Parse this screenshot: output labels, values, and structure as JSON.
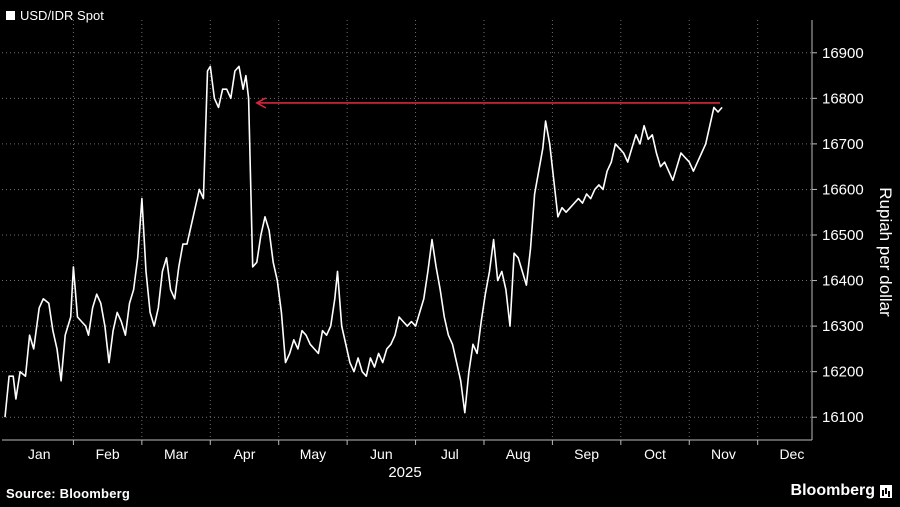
{
  "legend": {
    "label": "USD/IDR Spot"
  },
  "source": "Source: Bloomberg",
  "brand": "Bloomberg",
  "colors": {
    "background": "#000000",
    "line": "#ffffff",
    "arrow": "#d7263d",
    "grid": "#6e6e6e"
  },
  "chart_data": {
    "type": "line",
    "title": "",
    "xlabel": "2025",
    "ylabel": "Rupiah per dollar",
    "ylim": [
      16050,
      16950
    ],
    "yticks": [
      16100,
      16200,
      16300,
      16400,
      16500,
      16600,
      16700,
      16800,
      16900
    ],
    "months": [
      "Jan",
      "Feb",
      "Mar",
      "Apr",
      "May",
      "Jun",
      "Jul",
      "Aug",
      "Sep",
      "Oct",
      "Nov",
      "Dec"
    ],
    "x_range_months": [
      0,
      11.75
    ],
    "grid": true,
    "series": [
      {
        "name": "USD/IDR Spot",
        "values": [
          [
            0.0,
            16100
          ],
          [
            0.06,
            16190
          ],
          [
            0.12,
            16190
          ],
          [
            0.16,
            16140
          ],
          [
            0.22,
            16200
          ],
          [
            0.3,
            16190
          ],
          [
            0.36,
            16280
          ],
          [
            0.42,
            16250
          ],
          [
            0.5,
            16340
          ],
          [
            0.56,
            16360
          ],
          [
            0.64,
            16350
          ],
          [
            0.7,
            16290
          ],
          [
            0.76,
            16250
          ],
          [
            0.82,
            16180
          ],
          [
            0.88,
            16280
          ],
          [
            0.96,
            16320
          ],
          [
            1.0,
            16430
          ],
          [
            1.06,
            16320
          ],
          [
            1.12,
            16310
          ],
          [
            1.18,
            16300
          ],
          [
            1.22,
            16280
          ],
          [
            1.28,
            16340
          ],
          [
            1.34,
            16370
          ],
          [
            1.4,
            16350
          ],
          [
            1.46,
            16300
          ],
          [
            1.52,
            16220
          ],
          [
            1.58,
            16290
          ],
          [
            1.64,
            16330
          ],
          [
            1.7,
            16310
          ],
          [
            1.76,
            16280
          ],
          [
            1.82,
            16350
          ],
          [
            1.88,
            16380
          ],
          [
            1.94,
            16450
          ],
          [
            2.0,
            16580
          ],
          [
            2.06,
            16420
          ],
          [
            2.12,
            16330
          ],
          [
            2.18,
            16300
          ],
          [
            2.24,
            16340
          ],
          [
            2.3,
            16420
          ],
          [
            2.36,
            16450
          ],
          [
            2.42,
            16380
          ],
          [
            2.48,
            16360
          ],
          [
            2.54,
            16430
          ],
          [
            2.6,
            16480
          ],
          [
            2.66,
            16480
          ],
          [
            2.72,
            16520
          ],
          [
            2.78,
            16560
          ],
          [
            2.84,
            16600
          ],
          [
            2.9,
            16580
          ],
          [
            2.96,
            16860
          ],
          [
            3.0,
            16870
          ],
          [
            3.06,
            16800
          ],
          [
            3.12,
            16780
          ],
          [
            3.18,
            16820
          ],
          [
            3.24,
            16820
          ],
          [
            3.3,
            16800
          ],
          [
            3.36,
            16860
          ],
          [
            3.42,
            16870
          ],
          [
            3.48,
            16820
          ],
          [
            3.52,
            16850
          ],
          [
            3.56,
            16800
          ],
          [
            3.62,
            16430
          ],
          [
            3.68,
            16440
          ],
          [
            3.74,
            16500
          ],
          [
            3.8,
            16540
          ],
          [
            3.86,
            16510
          ],
          [
            3.92,
            16440
          ],
          [
            3.98,
            16400
          ],
          [
            4.04,
            16330
          ],
          [
            4.1,
            16220
          ],
          [
            4.16,
            16240
          ],
          [
            4.22,
            16270
          ],
          [
            4.28,
            16250
          ],
          [
            4.34,
            16290
          ],
          [
            4.4,
            16280
          ],
          [
            4.46,
            16260
          ],
          [
            4.52,
            16250
          ],
          [
            4.58,
            16240
          ],
          [
            4.64,
            16290
          ],
          [
            4.7,
            16280
          ],
          [
            4.76,
            16300
          ],
          [
            4.82,
            16360
          ],
          [
            4.86,
            16420
          ],
          [
            4.92,
            16300
          ],
          [
            4.98,
            16260
          ],
          [
            5.04,
            16220
          ],
          [
            5.1,
            16200
          ],
          [
            5.16,
            16230
          ],
          [
            5.22,
            16200
          ],
          [
            5.28,
            16190
          ],
          [
            5.34,
            16230
          ],
          [
            5.4,
            16210
          ],
          [
            5.46,
            16240
          ],
          [
            5.52,
            16220
          ],
          [
            5.58,
            16250
          ],
          [
            5.64,
            16260
          ],
          [
            5.7,
            16280
          ],
          [
            5.76,
            16320
          ],
          [
            5.82,
            16310
          ],
          [
            5.88,
            16300
          ],
          [
            5.94,
            16310
          ],
          [
            6.0,
            16300
          ],
          [
            6.06,
            16330
          ],
          [
            6.12,
            16360
          ],
          [
            6.18,
            16420
          ],
          [
            6.24,
            16490
          ],
          [
            6.3,
            16430
          ],
          [
            6.36,
            16380
          ],
          [
            6.42,
            16320
          ],
          [
            6.48,
            16280
          ],
          [
            6.54,
            16260
          ],
          [
            6.6,
            16220
          ],
          [
            6.66,
            16180
          ],
          [
            6.72,
            16110
          ],
          [
            6.78,
            16200
          ],
          [
            6.84,
            16260
          ],
          [
            6.9,
            16240
          ],
          [
            6.96,
            16310
          ],
          [
            7.02,
            16370
          ],
          [
            7.08,
            16420
          ],
          [
            7.14,
            16490
          ],
          [
            7.2,
            16400
          ],
          [
            7.26,
            16420
          ],
          [
            7.32,
            16380
          ],
          [
            7.38,
            16300
          ],
          [
            7.44,
            16460
          ],
          [
            7.5,
            16450
          ],
          [
            7.56,
            16420
          ],
          [
            7.62,
            16390
          ],
          [
            7.68,
            16470
          ],
          [
            7.74,
            16590
          ],
          [
            7.8,
            16640
          ],
          [
            7.86,
            16690
          ],
          [
            7.9,
            16750
          ],
          [
            7.96,
            16700
          ],
          [
            8.02,
            16620
          ],
          [
            8.08,
            16540
          ],
          [
            8.14,
            16560
          ],
          [
            8.2,
            16550
          ],
          [
            8.26,
            16560
          ],
          [
            8.32,
            16570
          ],
          [
            8.38,
            16580
          ],
          [
            8.44,
            16570
          ],
          [
            8.5,
            16590
          ],
          [
            8.56,
            16580
          ],
          [
            8.62,
            16600
          ],
          [
            8.68,
            16610
          ],
          [
            8.74,
            16600
          ],
          [
            8.8,
            16640
          ],
          [
            8.86,
            16660
          ],
          [
            8.92,
            16700
          ],
          [
            8.98,
            16690
          ],
          [
            9.04,
            16680
          ],
          [
            9.1,
            16660
          ],
          [
            9.16,
            16690
          ],
          [
            9.22,
            16720
          ],
          [
            9.28,
            16700
          ],
          [
            9.34,
            16740
          ],
          [
            9.4,
            16710
          ],
          [
            9.46,
            16720
          ],
          [
            9.52,
            16680
          ],
          [
            9.58,
            16650
          ],
          [
            9.64,
            16660
          ],
          [
            9.7,
            16640
          ],
          [
            9.76,
            16620
          ],
          [
            9.82,
            16650
          ],
          [
            9.88,
            16680
          ],
          [
            9.94,
            16670
          ],
          [
            10.0,
            16660
          ],
          [
            10.06,
            16640
          ],
          [
            10.12,
            16660
          ],
          [
            10.18,
            16680
          ],
          [
            10.24,
            16700
          ],
          [
            10.3,
            16740
          ],
          [
            10.36,
            16780
          ],
          [
            10.42,
            16770
          ],
          [
            10.48,
            16780
          ]
        ]
      }
    ],
    "annotations": [
      {
        "type": "arrow",
        "y": 16790,
        "from_month": 10.45,
        "to_month": 3.68
      }
    ]
  }
}
